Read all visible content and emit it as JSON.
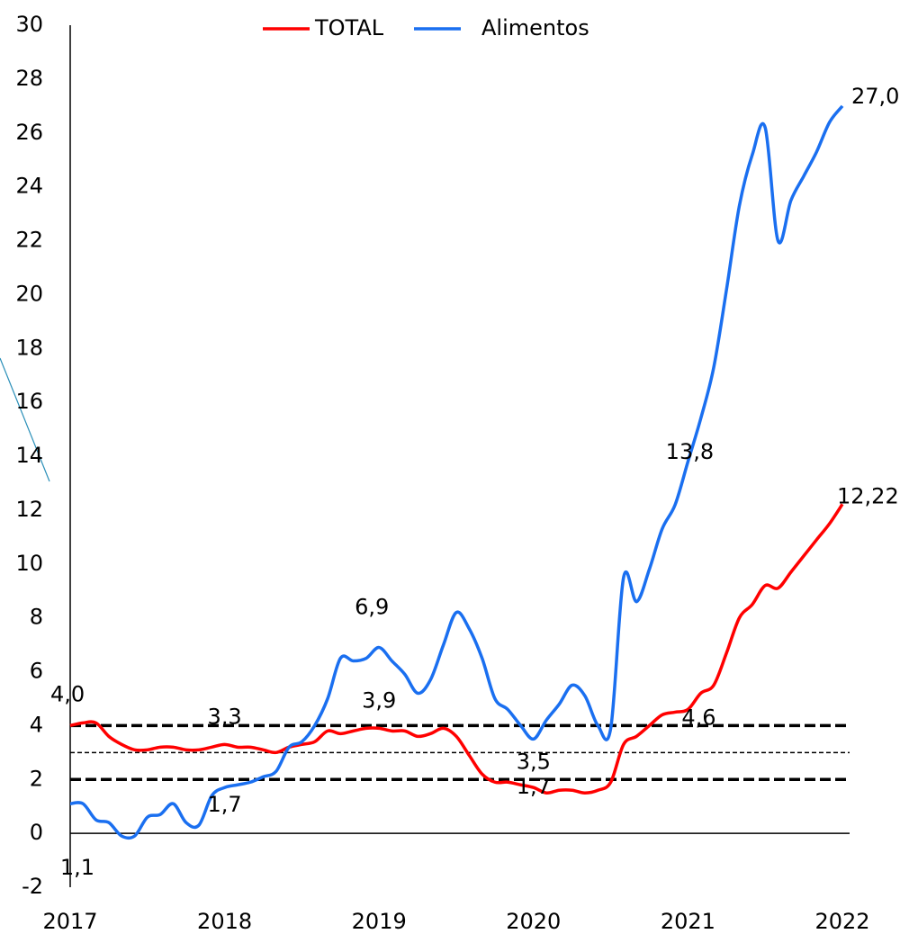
{
  "chart_data": {
    "type": "line",
    "x": [
      2017,
      2017.083,
      2017.167,
      2017.25,
      2017.333,
      2017.417,
      2017.5,
      2017.583,
      2017.667,
      2017.75,
      2017.833,
      2017.917,
      2018,
      2018.083,
      2018.167,
      2018.25,
      2018.333,
      2018.417,
      2018.5,
      2018.583,
      2018.667,
      2018.75,
      2018.833,
      2018.917,
      2019,
      2019.083,
      2019.167,
      2019.25,
      2019.333,
      2019.417,
      2019.5,
      2019.583,
      2019.667,
      2019.75,
      2019.833,
      2019.917,
      2020,
      2020.083,
      2020.167,
      2020.25,
      2020.333,
      2020.417,
      2020.5,
      2020.583,
      2020.667,
      2020.75,
      2020.833,
      2020.917,
      2021,
      2021.083,
      2021.167,
      2021.25,
      2021.333,
      2021.417,
      2021.5,
      2021.583,
      2021.667,
      2021.75,
      2021.833,
      2021.917,
      2022
    ],
    "series": [
      {
        "name": "TOTAL",
        "color": "#ff0000",
        "values": [
          4.0,
          4.1,
          4.1,
          3.6,
          3.3,
          3.1,
          3.1,
          3.2,
          3.2,
          3.1,
          3.1,
          3.2,
          3.3,
          3.2,
          3.2,
          3.1,
          3.0,
          3.2,
          3.3,
          3.4,
          3.8,
          3.7,
          3.8,
          3.9,
          3.9,
          3.8,
          3.8,
          3.6,
          3.7,
          3.9,
          3.6,
          2.9,
          2.2,
          1.9,
          1.9,
          1.8,
          1.7,
          1.5,
          1.6,
          1.6,
          1.5,
          1.6,
          1.9,
          3.3,
          3.6,
          4.0,
          4.4,
          4.5,
          4.6,
          5.2,
          5.5,
          6.7,
          8.0,
          8.5,
          9.2,
          9.1,
          9.7,
          10.3,
          10.9,
          11.5,
          12.22
        ],
        "value_labels": [
          "4,0",
          null,
          null,
          null,
          null,
          null,
          null,
          null,
          null,
          null,
          null,
          null,
          "3,3",
          null,
          null,
          null,
          null,
          null,
          null,
          null,
          null,
          null,
          null,
          null,
          "3,9",
          null,
          null,
          null,
          null,
          null,
          null,
          null,
          null,
          null,
          null,
          null,
          "1,7",
          null,
          null,
          null,
          null,
          null,
          null,
          null,
          null,
          null,
          null,
          null,
          "4,6",
          null,
          null,
          null,
          null,
          null,
          null,
          null,
          null,
          null,
          null,
          null,
          "12,22"
        ]
      },
      {
        "name": "Alimentos",
        "color": "#1a6ff0",
        "values": [
          1.1,
          1.1,
          0.5,
          0.4,
          -0.1,
          -0.1,
          0.6,
          0.7,
          1.1,
          0.4,
          0.3,
          1.4,
          1.7,
          1.8,
          1.9,
          2.1,
          2.3,
          3.2,
          3.4,
          4.0,
          5.0,
          6.5,
          6.4,
          6.5,
          6.9,
          6.4,
          5.9,
          5.2,
          5.7,
          7.0,
          8.2,
          7.6,
          6.5,
          5.0,
          4.6,
          4.0,
          3.5,
          4.2,
          4.8,
          5.5,
          5.1,
          4.0,
          3.9,
          9.5,
          8.6,
          9.8,
          11.3,
          12.2,
          13.8,
          15.4,
          17.3,
          20.2,
          23.3,
          25.2,
          26.2,
          22.0,
          23.5,
          24.4,
          25.3,
          26.4,
          27.0
        ],
        "value_labels": [
          "1,1",
          null,
          null,
          null,
          null,
          null,
          null,
          null,
          null,
          null,
          null,
          null,
          "1,7",
          null,
          null,
          null,
          null,
          null,
          null,
          null,
          null,
          null,
          null,
          null,
          "6,9",
          null,
          null,
          null,
          null,
          null,
          null,
          null,
          null,
          null,
          null,
          null,
          "3,5",
          null,
          null,
          null,
          null,
          null,
          null,
          null,
          null,
          null,
          null,
          null,
          "13,8",
          null,
          null,
          null,
          null,
          null,
          null,
          null,
          null,
          null,
          null,
          null,
          "27,0"
        ]
      }
    ],
    "label_color": [
      "#ff0000",
      "#1f7ac8"
    ],
    "xlim": [
      2017,
      2022
    ],
    "xticks": [
      2017,
      2018,
      2019,
      2020,
      2021,
      2022
    ],
    "ylim": [
      -2,
      30
    ],
    "yticks": [
      -2,
      0,
      2,
      4,
      6,
      8,
      10,
      12,
      14,
      16,
      18,
      20,
      22,
      24,
      26,
      28,
      30
    ],
    "hlines": [
      4,
      3,
      2
    ],
    "legend": "top",
    "grid": false
  }
}
